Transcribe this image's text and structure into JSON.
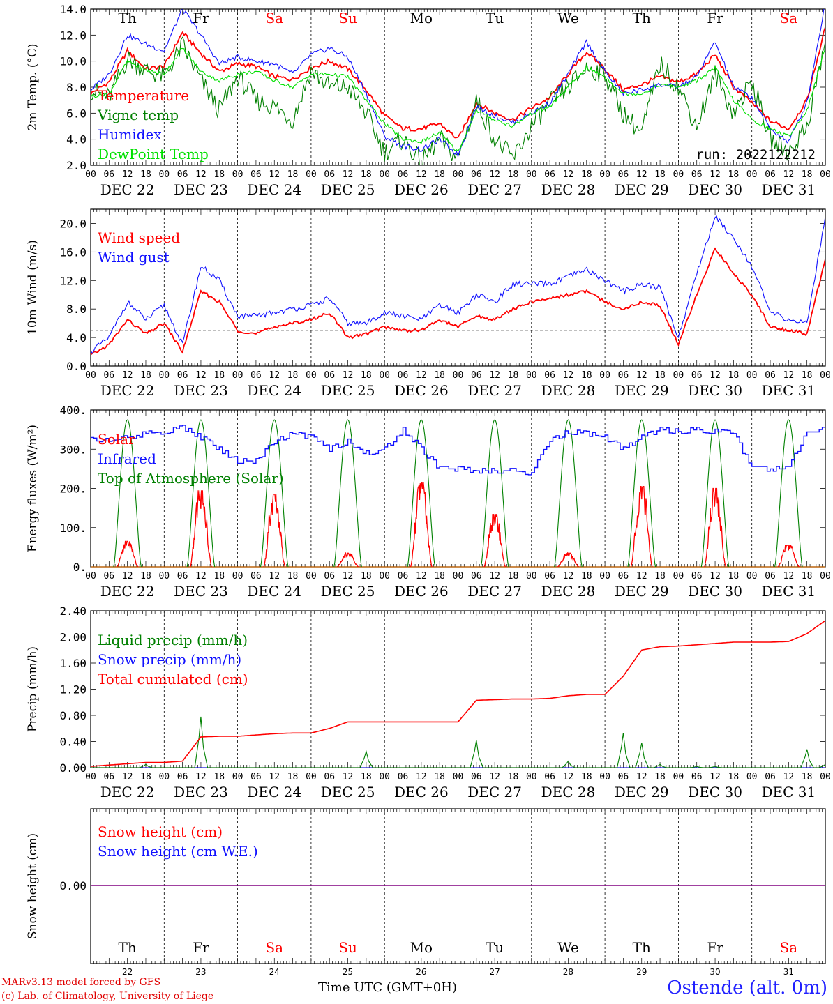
{
  "footer": {
    "model_line": "MARv3.13 model forced by GFS",
    "lab_line": "(c) Lab. of Climatology, University of Liege",
    "axis_caption": "Time UTC (GMT+0H)",
    "station": "Ostende (alt. 0m)"
  },
  "colors": {
    "red": "#ff0000",
    "blue": "#1010ff",
    "dark_green": "#008000",
    "light_green": "#00e000",
    "purple": "#800080",
    "weekend": "#ff0000"
  },
  "chart_data": [
    {
      "type": "line",
      "ylabel": "2m Temp. (°C)",
      "ylim": [
        2.0,
        14.0
      ],
      "yticks": [
        "2.0",
        "4.0",
        "6.0",
        "8.0",
        "10.0",
        "12.0",
        "14.0"
      ],
      "x_unit": "hours since DEC 22 00 UTC",
      "x": [
        0,
        6,
        12,
        18,
        24,
        30,
        36,
        42,
        48,
        54,
        60,
        66,
        72,
        78,
        84,
        90,
        96,
        102,
        108,
        114,
        120,
        126,
        132,
        138,
        144,
        150,
        156,
        162,
        168,
        174,
        180,
        186,
        192,
        198,
        204,
        210,
        216,
        222,
        228,
        234,
        240
      ],
      "day_names": [
        "Th",
        "Fr",
        "Sa",
        "Su",
        "Mo",
        "Tu",
        "We",
        "Th",
        "Fr",
        "Sa"
      ],
      "weekend_days": [
        2,
        3,
        9
      ],
      "date_labels": [
        "DEC 22",
        "DEC 23",
        "DEC 24",
        "DEC 25",
        "DEC 26",
        "DEC 27",
        "DEC 28",
        "DEC 29",
        "DEC 30",
        "DEC 31"
      ],
      "hour_ticks": [
        "00",
        "06",
        "12",
        "18"
      ],
      "run_label": "run: 2022122212",
      "series": [
        {
          "name": "Temperature",
          "color": "red",
          "values": [
            7.5,
            8.4,
            10.8,
            9.4,
            9.6,
            12.2,
            10.6,
            9.2,
            9.8,
            9.6,
            8.8,
            8.6,
            9.5,
            10.0,
            9.4,
            7.8,
            5.8,
            4.8,
            4.8,
            5.2,
            4.0,
            6.8,
            6.0,
            5.5,
            6.4,
            7.2,
            9.0,
            10.7,
            9.4,
            7.8,
            8.2,
            8.8,
            8.4,
            9.0,
            10.5,
            8.0,
            6.8,
            5.4,
            4.8,
            7.0,
            12.6
          ]
        },
        {
          "name": "Vigne temp",
          "color": "dark_green",
          "values": [
            7.8,
            7.2,
            10.2,
            9.3,
            8.8,
            11.2,
            8.5,
            6.2,
            8.8,
            7.0,
            6.5,
            5.5,
            9.3,
            8.0,
            8.0,
            6.0,
            3.0,
            4.0,
            2.2,
            4.0,
            2.5,
            7.0,
            4.0,
            2.5,
            5.0,
            6.8,
            8.0,
            9.5,
            9.0,
            6.0,
            4.5,
            9.8,
            8.0,
            5.0,
            9.0,
            6.0,
            8.5,
            4.0,
            3.0,
            5.0,
            11.5
          ]
        },
        {
          "name": "Humidex",
          "color": "blue",
          "values": [
            7.8,
            9.0,
            12.0,
            11.3,
            10.8,
            14.0,
            12.0,
            9.8,
            10.3,
            10.0,
            9.8,
            9.0,
            10.5,
            11.0,
            10.3,
            7.5,
            4.2,
            3.5,
            3.2,
            4.0,
            2.8,
            6.5,
            5.8,
            5.3,
            6.0,
            6.8,
            9.0,
            11.5,
            9.2,
            7.5,
            7.8,
            8.2,
            8.0,
            8.8,
            11.5,
            8.0,
            7.2,
            4.8,
            3.8,
            6.8,
            14.5
          ]
        },
        {
          "name": "DewPoint Temp",
          "color": "light_green",
          "values": [
            7.3,
            7.5,
            10.0,
            9.3,
            9.0,
            11.0,
            9.2,
            8.5,
            9.0,
            9.2,
            8.5,
            8.0,
            9.0,
            9.0,
            8.8,
            7.0,
            5.2,
            4.0,
            3.8,
            4.5,
            3.0,
            6.2,
            5.5,
            5.0,
            6.0,
            6.5,
            8.0,
            9.5,
            8.8,
            7.5,
            7.5,
            8.2,
            8.0,
            8.5,
            9.5,
            7.0,
            5.5,
            4.8,
            4.2,
            6.2,
            11.0
          ]
        }
      ]
    },
    {
      "type": "line",
      "ylabel": "10m Wind (m/s)",
      "ylim": [
        0.0,
        22.0
      ],
      "yticks": [
        "0.0",
        "4.0",
        "8.0",
        "12.0",
        "16.0",
        "20.0"
      ],
      "reference_line": 5.0,
      "x": [
        0,
        6,
        12,
        18,
        24,
        30,
        36,
        42,
        48,
        54,
        60,
        66,
        72,
        78,
        84,
        90,
        96,
        102,
        108,
        114,
        120,
        126,
        132,
        138,
        144,
        150,
        156,
        162,
        168,
        174,
        180,
        186,
        192,
        198,
        204,
        210,
        216,
        222,
        228,
        234,
        240
      ],
      "date_labels": [
        "DEC 22",
        "DEC 23",
        "DEC 24",
        "DEC 25",
        "DEC 26",
        "DEC 27",
        "DEC 28",
        "DEC 29",
        "DEC 30",
        "DEC 31"
      ],
      "hour_ticks": [
        "00",
        "06",
        "12",
        "18"
      ],
      "series": [
        {
          "name": "Wind speed",
          "color": "red",
          "values": [
            1.5,
            3.0,
            6.5,
            4.5,
            6.0,
            2.0,
            10.5,
            9.0,
            5.0,
            4.5,
            5.5,
            6.0,
            6.5,
            7.5,
            4.0,
            4.5,
            5.5,
            5.0,
            5.0,
            6.5,
            5.5,
            7.0,
            6.5,
            8.0,
            9.0,
            9.5,
            10.0,
            10.5,
            9.0,
            8.0,
            9.0,
            8.5,
            3.0,
            10.0,
            16.5,
            13.0,
            10.0,
            5.5,
            5.0,
            4.5,
            15.0
          ]
        },
        {
          "name": "Wind gust",
          "color": "blue",
          "values": [
            2.0,
            4.0,
            9.0,
            6.5,
            8.5,
            3.0,
            14.0,
            12.0,
            7.0,
            7.0,
            7.5,
            8.0,
            8.5,
            9.5,
            6.0,
            6.0,
            7.5,
            7.0,
            6.5,
            8.5,
            7.5,
            10.0,
            9.0,
            11.5,
            11.5,
            11.5,
            12.5,
            13.5,
            12.0,
            10.5,
            11.5,
            11.0,
            4.0,
            13.0,
            21.0,
            18.0,
            14.0,
            7.5,
            6.5,
            6.0,
            21.0
          ]
        }
      ]
    },
    {
      "type": "line",
      "ylabel": "Energy fluxes (W/m²)",
      "ylim": [
        0,
        400
      ],
      "yticks": [
        "0.",
        "100.",
        "200.",
        "300.",
        "400."
      ],
      "x": [
        0,
        6,
        12,
        18,
        24,
        30,
        36,
        42,
        48,
        54,
        60,
        66,
        72,
        78,
        84,
        90,
        96,
        102,
        108,
        114,
        120,
        126,
        132,
        138,
        144,
        150,
        156,
        162,
        168,
        174,
        180,
        186,
        192,
        198,
        204,
        210,
        216,
        222,
        228,
        234,
        240
      ],
      "date_labels": [
        "DEC 22",
        "DEC 23",
        "DEC 24",
        "DEC 25",
        "DEC 26",
        "DEC 27",
        "DEC 28",
        "DEC 29",
        "DEC 30",
        "DEC 31"
      ],
      "hour_ticks": [
        "00",
        "06",
        "12",
        "18"
      ],
      "series": [
        {
          "name": "Solar",
          "color": "red",
          "daily_peaks": [
            65,
            195,
            185,
            35,
            215,
            135,
            35,
            205,
            200,
            55
          ]
        },
        {
          "name": "Infrared",
          "color": "blue",
          "values": [
            330,
            320,
            330,
            340,
            345,
            355,
            330,
            300,
            270,
            270,
            320,
            340,
            330,
            300,
            320,
            290,
            300,
            350,
            300,
            250,
            250,
            245,
            245,
            245,
            240,
            320,
            345,
            340,
            330,
            300,
            330,
            350,
            345,
            350,
            345,
            340,
            250,
            250,
            250,
            350,
            350
          ]
        },
        {
          "name": "Top of Atmosphere (Solar)",
          "color": "dark_green",
          "daily_peak": 375
        }
      ]
    },
    {
      "type": "line",
      "ylabel": "Precip (mm/h)",
      "ylim": [
        0.0,
        2.4
      ],
      "yticks": [
        "0.00",
        "0.40",
        "0.80",
        "1.20",
        "1.60",
        "2.00",
        "2.40"
      ],
      "x": [
        0,
        6,
        12,
        18,
        24,
        30,
        36,
        42,
        48,
        54,
        60,
        66,
        72,
        78,
        84,
        90,
        96,
        102,
        108,
        114,
        120,
        126,
        132,
        138,
        144,
        150,
        156,
        162,
        168,
        174,
        180,
        186,
        192,
        198,
        204,
        210,
        216,
        222,
        228,
        234,
        240
      ],
      "date_labels": [
        "DEC 22",
        "DEC 23",
        "DEC 24",
        "DEC 25",
        "DEC 26",
        "DEC 27",
        "DEC 28",
        "DEC 29",
        "DEC 30",
        "DEC 31"
      ],
      "hour_ticks": [
        "00",
        "06",
        "12",
        "18"
      ],
      "series": [
        {
          "name": "Liquid precip (mm/h)",
          "color": "dark_green",
          "values": [
            0,
            0,
            0,
            0.05,
            0,
            0,
            0.78,
            0,
            0,
            0,
            0,
            0,
            0,
            0,
            0,
            0.25,
            0,
            0,
            0,
            0,
            0,
            0.42,
            0,
            0,
            0,
            0,
            0.1,
            0,
            0,
            0.53,
            0.38,
            0.05,
            0,
            0.02,
            0.02,
            0,
            0,
            0,
            0,
            0.28,
            0.05
          ]
        },
        {
          "name": "Snow precip (mm/h)",
          "color": "blue",
          "values": [
            0,
            0,
            0,
            0,
            0,
            0,
            0,
            0,
            0,
            0,
            0,
            0,
            0,
            0,
            0,
            0,
            0,
            0,
            0,
            0,
            0,
            0,
            0,
            0,
            0,
            0,
            0,
            0,
            0,
            0,
            0,
            0,
            0,
            0,
            0,
            0,
            0,
            0,
            0,
            0,
            0
          ]
        },
        {
          "name": "Total cumulated (cm)",
          "color": "red",
          "values": [
            0.02,
            0.04,
            0.06,
            0.08,
            0.08,
            0.1,
            0.47,
            0.48,
            0.48,
            0.5,
            0.52,
            0.53,
            0.53,
            0.6,
            0.7,
            0.7,
            0.7,
            0.7,
            0.7,
            0.7,
            0.7,
            1.03,
            1.04,
            1.05,
            1.05,
            1.06,
            1.1,
            1.12,
            1.12,
            1.4,
            1.8,
            1.85,
            1.86,
            1.88,
            1.9,
            1.92,
            1.92,
            1.92,
            1.93,
            2.05,
            2.25
          ]
        }
      ]
    },
    {
      "type": "line",
      "ylabel": "Snow height (cm)",
      "yticks": [
        "0.00"
      ],
      "day_names": [
        "Th",
        "Fr",
        "Sa",
        "Su",
        "Mo",
        "Tu",
        "We",
        "Th",
        "Fr",
        "Sa"
      ],
      "weekend_days": [
        2,
        3,
        9
      ],
      "day_numbers": [
        "22",
        "23",
        "24",
        "25",
        "26",
        "27",
        "28",
        "29",
        "30",
        "31"
      ],
      "series": [
        {
          "name": "Snow height (cm)",
          "color": "red",
          "values": [
            0,
            0
          ]
        },
        {
          "name": "Snow height (cm W.E.)",
          "color": "blue",
          "values": [
            0,
            0
          ]
        }
      ]
    }
  ]
}
